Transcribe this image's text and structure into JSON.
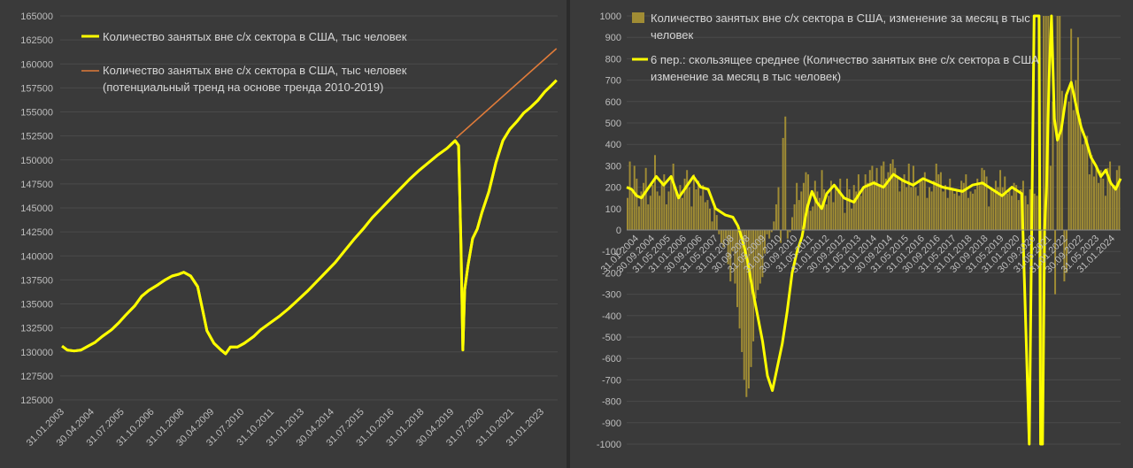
{
  "colors": {
    "background": "#3a3a3a",
    "yellow": "#ffff00",
    "orange": "#e07b39",
    "bars": "#a08c34",
    "text": "#bdbdbd"
  },
  "chart_data": [
    {
      "type": "line",
      "title": "",
      "ylim": [
        125000,
        165000
      ],
      "yticks": [
        125000,
        127500,
        130000,
        132500,
        135000,
        137500,
        140000,
        142500,
        145000,
        147500,
        150000,
        152500,
        155000,
        157500,
        160000,
        162500,
        165000
      ],
      "x_tick_labels": [
        "31.01.2003",
        "30.04.2004",
        "31.07.2005",
        "31.10.2006",
        "31.01.2008",
        "30.04.2009",
        "31.07.2010",
        "31.10.2011",
        "31.01.2013",
        "30.04.2014",
        "31.07.2015",
        "31.10.2016",
        "31.01.2018",
        "30.04.2019",
        "31.07.2020",
        "31.10.2021",
        "31.01.2023"
      ],
      "legend": [
        "Количество занятых вне с/х сектора в США, тыс человек",
        "Количество занятых вне с/х сектора в США, тыс человек",
        "(потенциальный тренд на основе тренда 2010-2019)"
      ],
      "series": [
        {
          "name": "Количество занятых вне с/х сектора в США, тыс человек",
          "color": "#ffff00",
          "x": [
            2003.08,
            2003.3,
            2003.6,
            2003.9,
            2004.2,
            2004.5,
            2004.8,
            2005.2,
            2005.5,
            2005.8,
            2006.2,
            2006.5,
            2006.8,
            2007.2,
            2007.5,
            2007.8,
            2008.1,
            2008.3,
            2008.6,
            2008.9,
            2009.1,
            2009.3,
            2009.6,
            2009.9,
            2010.1,
            2010.3,
            2010.6,
            2010.9,
            2011.3,
            2011.6,
            2012.0,
            2012.4,
            2012.8,
            2013.2,
            2013.6,
            2014.0,
            2014.4,
            2014.8,
            2015.2,
            2015.6,
            2016.0,
            2016.4,
            2016.8,
            2017.2,
            2017.6,
            2018.0,
            2018.4,
            2018.8,
            2019.2,
            2019.6,
            2019.95,
            2020.1,
            2020.2,
            2020.28,
            2020.36,
            2020.5,
            2020.7,
            2020.9,
            2021.1,
            2021.4,
            2021.7,
            2022.0,
            2022.3,
            2022.6,
            2022.9,
            2023.2,
            2023.5,
            2023.8,
            2024.1,
            2024.3
          ],
          "y": [
            130600,
            130200,
            130100,
            130200,
            130600,
            131000,
            131600,
            132300,
            133000,
            133800,
            134800,
            135800,
            136400,
            137000,
            137500,
            137900,
            138100,
            138300,
            137900,
            136800,
            134500,
            132200,
            130900,
            130200,
            129800,
            130500,
            130500,
            130900,
            131600,
            132300,
            133000,
            133700,
            134500,
            135400,
            136300,
            137300,
            138300,
            139300,
            140500,
            141700,
            142800,
            144000,
            145000,
            146000,
            147000,
            148000,
            148900,
            149700,
            150500,
            151200,
            152000,
            151500,
            141000,
            130200,
            136500,
            139000,
            141800,
            142800,
            144500,
            146700,
            149700,
            152000,
            153200,
            154000,
            154900,
            155500,
            156200,
            157100,
            157800,
            158300
          ]
        },
        {
          "name": "Количество занятых вне с/х сектора в США, тыс человек (потенциальный тренд на основе тренда 2010-2019)",
          "color": "#e07b39",
          "x": [
            2020.0,
            2024.3
          ],
          "y": [
            152300,
            161600
          ]
        }
      ]
    },
    {
      "type": "bar",
      "title": "",
      "ylim": [
        -1000,
        1000
      ],
      "yticks": [
        -1000,
        -900,
        -800,
        -700,
        -600,
        -500,
        -400,
        -300,
        -200,
        -100,
        0,
        100,
        200,
        300,
        400,
        500,
        600,
        700,
        800,
        900,
        1000
      ],
      "x_tick_labels": [
        "31.01.2004",
        "30.09.2004",
        "31.05.2005",
        "31.01.2006",
        "30.09.2006",
        "31.05.2007",
        "31.01.2008",
        "30.09.2008",
        "31.05.2009",
        "31.01.2010",
        "30.09.2010",
        "31.05.2011",
        "31.01.2012",
        "30.09.2012",
        "31.05.2013",
        "31.01.2014",
        "30.09.2014",
        "31.05.2015",
        "31.01.2016",
        "30.09.2016",
        "31.05.2017",
        "31.01.2018",
        "30.09.2018",
        "31.05.2019",
        "31.01.2020",
        "30.09.2020",
        "31.05.2021",
        "31.01.2022",
        "30.09.2022",
        "31.05.2023",
        "31.01.2024"
      ],
      "legend": [
        "Количество занятых вне с/х сектора в США, изменение за месяц в тыс",
        "человек",
        "6 пер.: скользящее среднее (Количество занятых вне с/х сектора в США",
        "изменение за месяц в тыс человек)"
      ],
      "series": [
        {
          "name": "Количество занятых вне с/х сектора в США, изменение за месяц в тыс человек",
          "color": "#a08c34",
          "values": [
            150,
            320,
            180,
            300,
            240,
            110,
            180,
            220,
            290,
            120,
            160,
            210,
            350,
            180,
            160,
            230,
            260,
            120,
            180,
            250,
            310,
            200,
            170,
            210,
            150,
            240,
            280,
            200,
            110,
            260,
            190,
            230,
            160,
            210,
            130,
            140,
            100,
            40,
            120,
            70,
            -20,
            -60,
            -80,
            -40,
            -160,
            -240,
            -100,
            -250,
            -360,
            -460,
            -570,
            -700,
            -780,
            -740,
            -640,
            -520,
            -320,
            -280,
            -250,
            -220,
            -110,
            -20,
            -40,
            -10,
            40,
            120,
            200,
            -60,
            430,
            530,
            -40,
            -10,
            60,
            120,
            220,
            140,
            180,
            220,
            270,
            260,
            90,
            110,
            230,
            180,
            150,
            280,
            190,
            120,
            160,
            230,
            130,
            200,
            180,
            240,
            160,
            80,
            240,
            190,
            100,
            210,
            180,
            260,
            160,
            190,
            260,
            220,
            280,
            300,
            230,
            290,
            210,
            300,
            320,
            240,
            270,
            310,
            330,
            290,
            250,
            180,
            230,
            260,
            200,
            310,
            200,
            300,
            200,
            160,
            240,
            230,
            270,
            150,
            200,
            180,
            230,
            310,
            260,
            270,
            180,
            210,
            150,
            240,
            190,
            170,
            180,
            160,
            230,
            220,
            260,
            150,
            180,
            170,
            190,
            240,
            210,
            290,
            280,
            250,
            110,
            200,
            180,
            230,
            200,
            280,
            200,
            250,
            170,
            190,
            160,
            220,
            210,
            140,
            190,
            230,
            160,
            120,
            190,
            240,
            170,
            160,
            230,
            -1000,
            1000,
            1000,
            1000,
            300,
            600,
            -300,
            1000,
            1000,
            650,
            -240,
            -200,
            600,
            940,
            560,
            700,
            900,
            520,
            400,
            420,
            440,
            260,
            350,
            250,
            300,
            220,
            280,
            240,
            160,
            290,
            320,
            200,
            210,
            280,
            300
          ]
        },
        {
          "name": "6 пер.: скользящее среднее (Количество занятых вне с/х сектора в США изменение за месяц в тыс человек)",
          "color": "#ffff00",
          "x_frac": [
            0,
            0.01,
            0.02,
            0.03,
            0.045,
            0.06,
            0.075,
            0.09,
            0.105,
            0.12,
            0.135,
            0.15,
            0.165,
            0.18,
            0.2,
            0.215,
            0.225,
            0.235,
            0.245,
            0.255,
            0.265,
            0.275,
            0.285,
            0.295,
            0.305,
            0.315,
            0.325,
            0.335,
            0.345,
            0.355,
            0.365,
            0.375,
            0.385,
            0.395,
            0.405,
            0.42,
            0.44,
            0.46,
            0.48,
            0.5,
            0.52,
            0.54,
            0.56,
            0.58,
            0.6,
            0.62,
            0.64,
            0.66,
            0.68,
            0.7,
            0.72,
            0.74,
            0.76,
            0.78,
            0.8,
            0.815,
            0.825,
            0.83,
            0.835,
            0.838,
            0.842,
            0.846,
            0.85,
            0.855,
            0.86,
            0.866,
            0.872,
            0.88,
            0.89,
            0.9,
            0.91,
            0.92,
            0.93,
            0.94,
            0.95,
            0.96,
            0.97,
            0.98,
            0.99,
            1.0
          ],
          "y": [
            200,
            190,
            160,
            150,
            200,
            250,
            210,
            250,
            150,
            200,
            250,
            200,
            190,
            100,
            70,
            60,
            20,
            -50,
            -150,
            -280,
            -400,
            -520,
            -680,
            -750,
            -640,
            -530,
            -380,
            -200,
            -100,
            -30,
            100,
            180,
            130,
            100,
            170,
            210,
            150,
            130,
            200,
            220,
            200,
            260,
            230,
            210,
            240,
            220,
            200,
            190,
            180,
            210,
            220,
            190,
            160,
            200,
            170,
            -1000,
            1000,
            1000,
            1000,
            -1000,
            -1000,
            0,
            200,
            700,
            1000,
            520,
            420,
            470,
            630,
            690,
            580,
            480,
            420,
            340,
            300,
            250,
            280,
            220,
            190,
            240
          ]
        }
      ]
    }
  ]
}
